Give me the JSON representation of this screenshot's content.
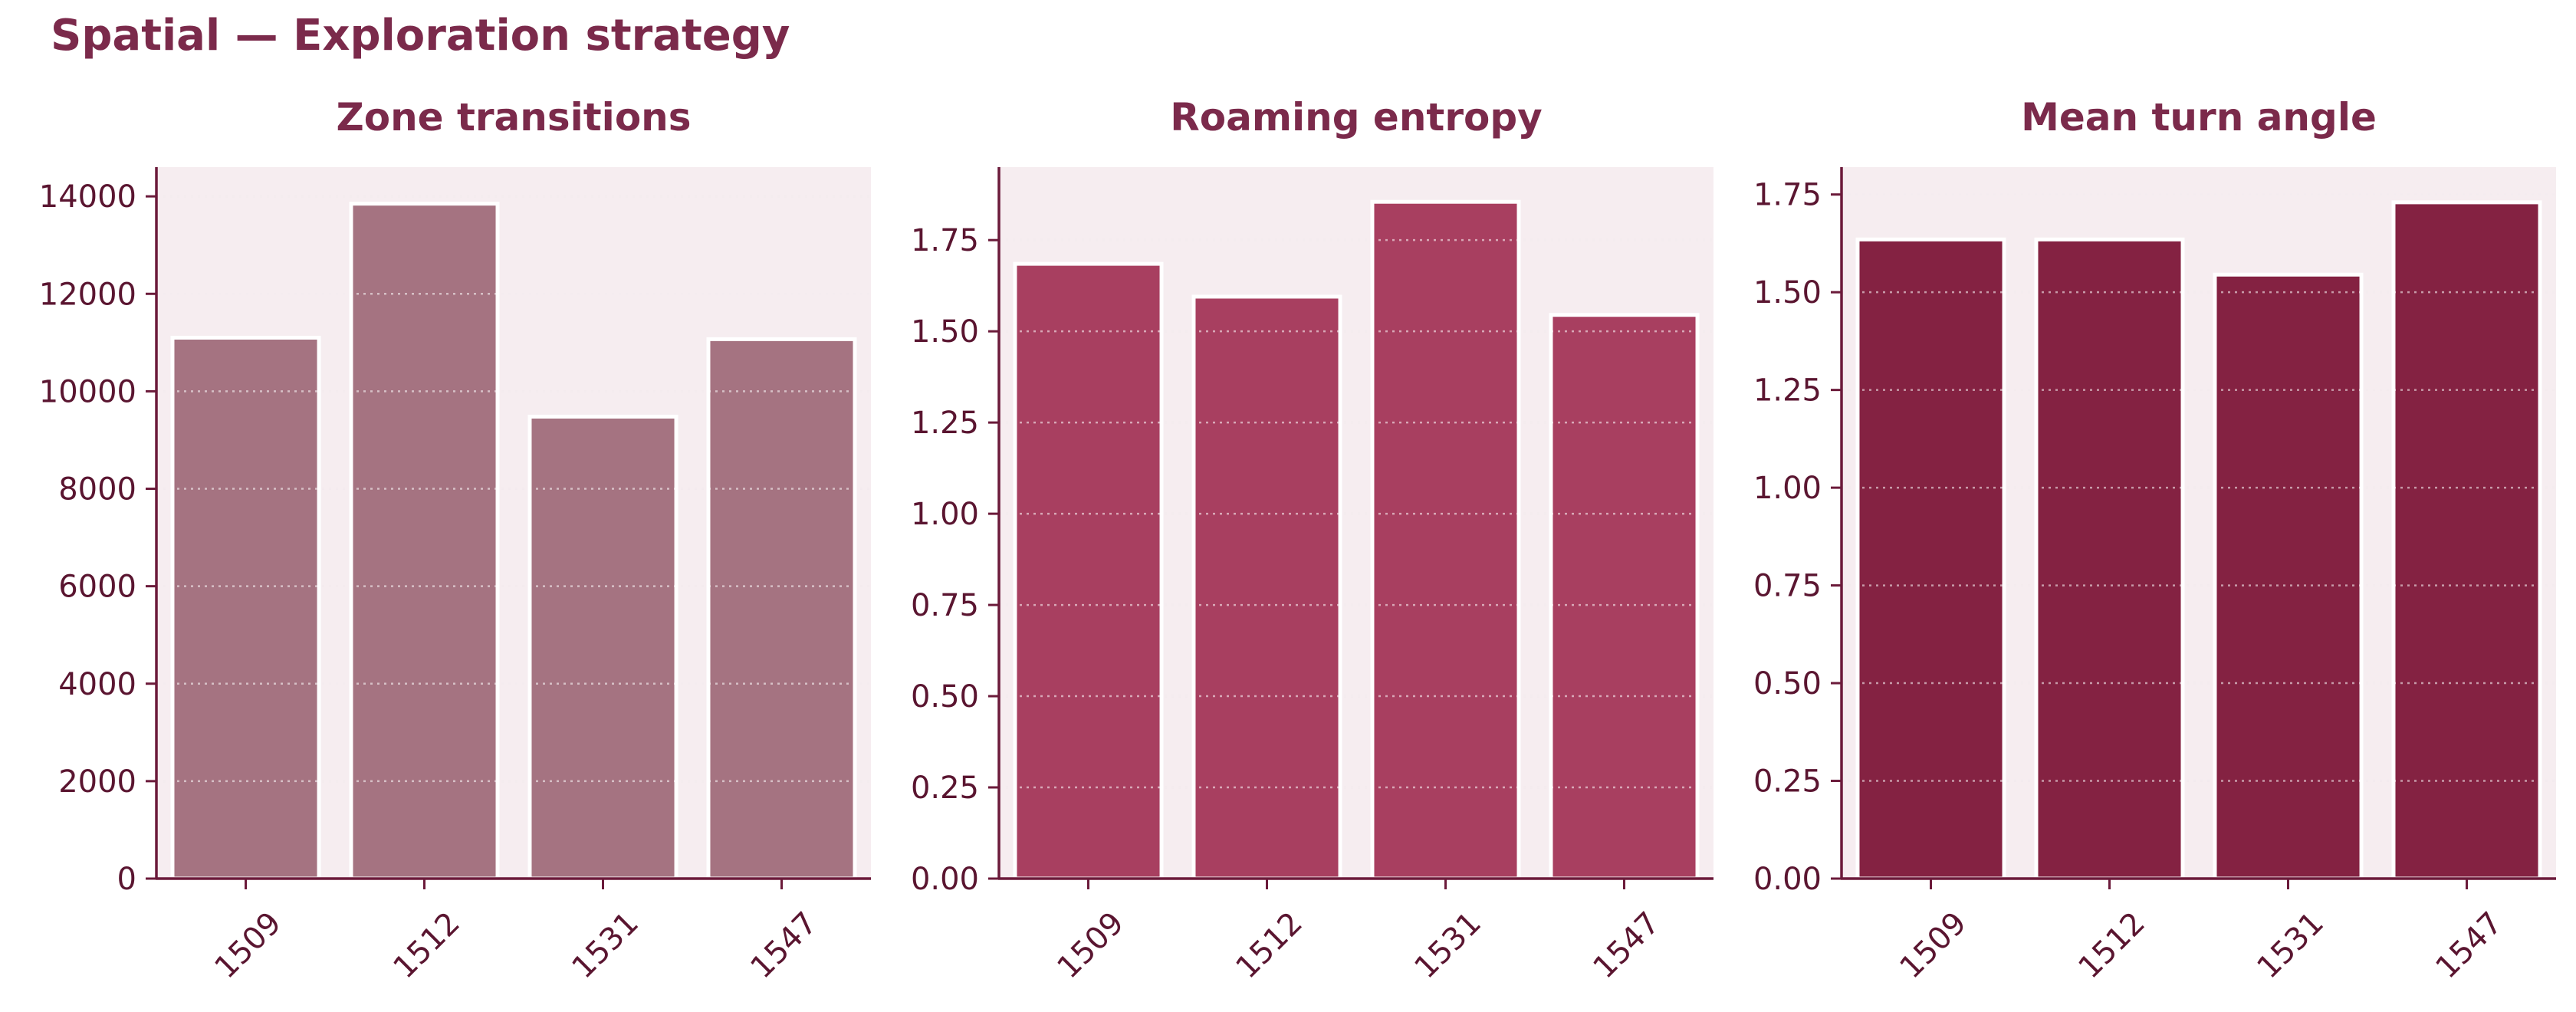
{
  "suptitle": "Spatial — Exploration strategy",
  "colors": {
    "title": "#7b2a4b",
    "axis": "#6b1a3a",
    "tick_text": "#5a1530",
    "plot_bg": "#f6edf0",
    "grid": "#e6d6dc"
  },
  "chart_data": [
    {
      "type": "bar",
      "title": "Zone transitions",
      "categories": [
        "1509",
        "1512",
        "1531",
        "1547"
      ],
      "values": [
        11100,
        13850,
        9480,
        11070
      ],
      "ylim": [
        0,
        14600
      ],
      "yticks": [
        0,
        2000,
        4000,
        6000,
        8000,
        10000,
        12000,
        14000
      ],
      "ytick_labels": [
        "0",
        "2000",
        "4000",
        "6000",
        "8000",
        "10000",
        "12000",
        "14000"
      ],
      "bar_color": "#a57381",
      "grid": true
    },
    {
      "type": "bar",
      "title": "Roaming entropy",
      "categories": [
        "1509",
        "1512",
        "1531",
        "1547"
      ],
      "values": [
        1.685,
        1.595,
        1.855,
        1.545
      ],
      "ylim": [
        0,
        1.95
      ],
      "yticks": [
        0,
        0.25,
        0.5,
        0.75,
        1.0,
        1.25,
        1.5,
        1.75
      ],
      "ytick_labels": [
        "0.00",
        "0.25",
        "0.50",
        "0.75",
        "1.00",
        "1.25",
        "1.50",
        "1.75"
      ],
      "bar_color": "#a83f60",
      "grid": true
    },
    {
      "type": "bar",
      "title": "Mean turn angle",
      "categories": [
        "1509",
        "1512",
        "1531",
        "1547"
      ],
      "values": [
        1.635,
        1.635,
        1.545,
        1.73
      ],
      "ylim": [
        0,
        1.82
      ],
      "yticks": [
        0,
        0.25,
        0.5,
        0.75,
        1.0,
        1.25,
        1.5,
        1.75
      ],
      "ytick_labels": [
        "0.00",
        "0.25",
        "0.50",
        "0.75",
        "1.00",
        "1.25",
        "1.50",
        "1.75"
      ],
      "bar_color": "#842242",
      "grid": true
    }
  ]
}
